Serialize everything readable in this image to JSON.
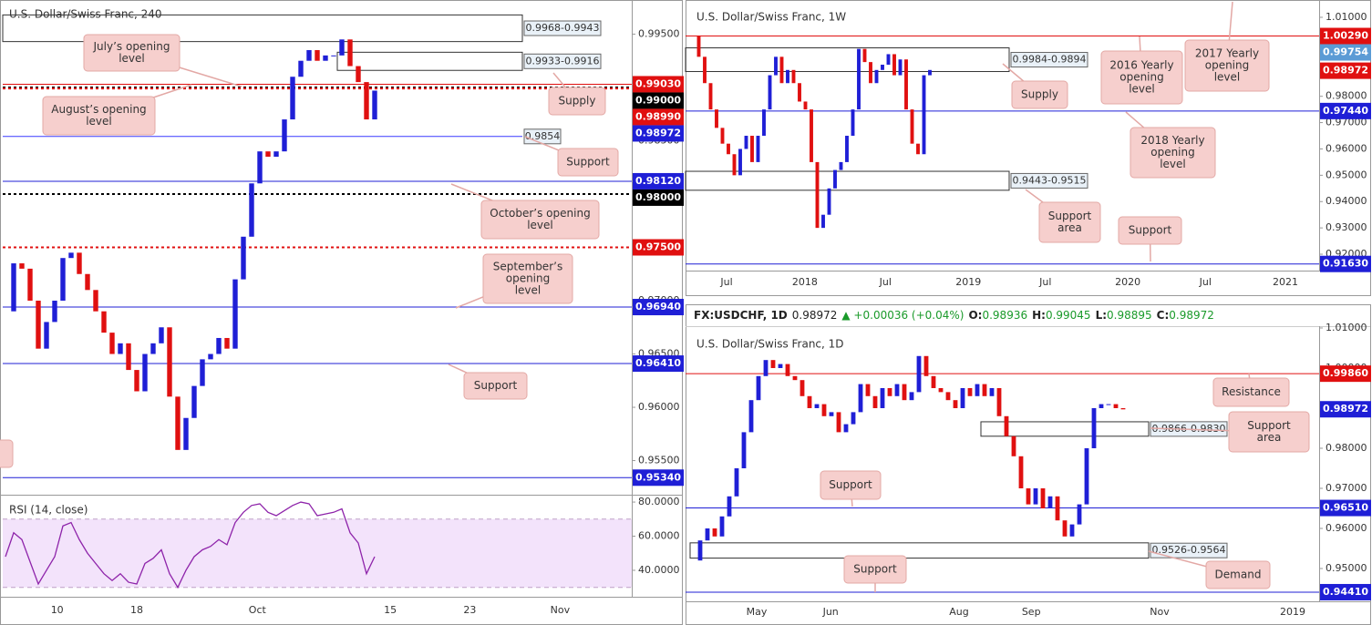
{
  "chart_data": [
    {
      "type": "candlestick",
      "title": "U.S. Dollar/Swiss Franc, 240",
      "closes": [
        0.969,
        0.9735,
        0.973,
        0.97,
        0.9655,
        0.968,
        0.97,
        0.974,
        0.9745,
        0.9725,
        0.971,
        0.969,
        0.967,
        0.965,
        0.966,
        0.9635,
        0.9615,
        0.965,
        0.966,
        0.9675,
        0.961,
        0.956,
        0.959,
        0.962,
        0.9645,
        0.965,
        0.9665,
        0.9655,
        0.972,
        0.976,
        0.981,
        0.984,
        0.9835,
        0.984,
        0.987,
        0.991,
        0.9925,
        0.9935,
        0.9925,
        0.993,
        0.993,
        0.9945,
        0.992,
        0.9905,
        0.987,
        0.9897
      ],
      "up_color": "#1f1fd6",
      "down_color": "#e01010",
      "xlim": [
        0,
        76
      ],
      "xticks": [
        {
          "value": 6.3,
          "label": "10"
        },
        {
          "value": 16,
          "label": "18"
        },
        {
          "value": 30.7,
          "label": "Oct"
        },
        {
          "value": 46.9,
          "label": "15"
        },
        {
          "value": 56.6,
          "label": "23"
        },
        {
          "value": 67.6,
          "label": "Nov"
        }
      ],
      "ylim": [
        0.9518,
        0.9982
      ],
      "yticks": [
        {
          "value": 0.955,
          "label": "0.95500"
        },
        {
          "value": 0.96,
          "label": "0.96000"
        },
        {
          "value": 0.965,
          "label": "0.96500"
        },
        {
          "value": 0.97,
          "label": "0.97000"
        },
        {
          "value": 0.975,
          "label": "0.97500"
        },
        {
          "value": 0.98,
          "label": "0.98000"
        },
        {
          "value": 0.985,
          "label": "0.98500"
        },
        {
          "value": 0.99,
          "label": "0.99000"
        },
        {
          "value": 0.995,
          "label": "0.99500"
        }
      ],
      "zones": [
        {
          "values": [
            0.9968,
            0.9943
          ],
          "label": "0.9968-0.9943"
        },
        {
          "values": [
            0.9933,
            0.9916
          ],
          "label": "0.9933-0.9916"
        }
      ],
      "lines": [
        {
          "value": 0.9854,
          "color": "#3a3aff"
        }
      ],
      "levels": [
        {
          "value": 0.9903,
          "label": "0.99030",
          "color": "#e01010",
          "style": "solid"
        },
        {
          "value": 0.99,
          "label": "0.99000",
          "color": "#000000",
          "style": "dashed"
        },
        {
          "value": 0.9899,
          "label": "0.98990",
          "color": "#e01010",
          "style": "dashed"
        },
        {
          "value": 0.98972,
          "label": "0.98972",
          "color": "#1f1fd6",
          "style": "none"
        },
        {
          "value": 0.9812,
          "label": "0.98120",
          "color": "#1f1fd6",
          "style": "solid"
        },
        {
          "value": 0.98,
          "label": "0.98000",
          "color": "#000000",
          "style": "dashed"
        },
        {
          "value": 0.975,
          "label": "0.97500",
          "color": "#e01010",
          "style": "dashed"
        },
        {
          "value": 0.9694,
          "label": "0.96940",
          "color": "#1f1fd6",
          "style": "solid"
        },
        {
          "value": 0.9641,
          "label": "0.96410",
          "color": "#1f1fd6",
          "style": "solid"
        },
        {
          "value": 0.9534,
          "label": "0.95340",
          "color": "#1f1fd6",
          "style": "solid"
        }
      ],
      "annotations": [
        {
          "lines": [
            "July’s opening",
            "level"
          ]
        },
        {
          "lines": [
            "August’s opening",
            "level"
          ]
        },
        {
          "lines": [
            "Supply"
          ]
        },
        {
          "lines": [
            "Support"
          ]
        },
        {
          "lines": [
            "October’s opening",
            "level"
          ]
        },
        {
          "lines": [
            "September’s",
            "opening",
            "level"
          ]
        },
        {
          "lines": [
            "Support"
          ]
        }
      ]
    },
    {
      "type": "line",
      "title": "RSI (14, close)",
      "color": "#8e24aa",
      "values": [
        48,
        62,
        58,
        45,
        32,
        40,
        48,
        66,
        68,
        58,
        50,
        44,
        38,
        34,
        38,
        33,
        32,
        44,
        47,
        52,
        38,
        30,
        40,
        48,
        52,
        54,
        58,
        55,
        68,
        74,
        78,
        79,
        74,
        72,
        75,
        78,
        80,
        79,
        72,
        73,
        74,
        76,
        62,
        56,
        38,
        48
      ],
      "band": [
        30,
        70
      ],
      "band_color": "#f3e3fb",
      "xlim": [
        0,
        76
      ],
      "ylim": [
        24.5,
        84.3
      ],
      "yticks": [
        {
          "value": 40,
          "label": "40.0000"
        },
        {
          "value": 60,
          "label": "60.0000"
        },
        {
          "value": 80,
          "label": "80.0000"
        }
      ]
    },
    {
      "type": "candlestick",
      "title": "U.S. Dollar/Swiss Franc, 1W",
      "closes": [
        1.003,
        0.995,
        0.985,
        0.975,
        0.968,
        0.962,
        0.958,
        0.95,
        0.96,
        0.965,
        0.955,
        0.965,
        0.975,
        0.988,
        0.995,
        0.985,
        0.99,
        0.985,
        0.978,
        0.975,
        0.955,
        0.93,
        0.935,
        0.945,
        0.952,
        0.955,
        0.965,
        0.975,
        0.998,
        0.993,
        0.985,
        0.99,
        0.992,
        0.996,
        0.988,
        0.994,
        0.975,
        0.962,
        0.958,
        0.988,
        0.99
      ],
      "up_color": "#1f1fd6",
      "down_color": "#e01010",
      "xlim": [
        0,
        105
      ],
      "xticks": [
        {
          "value": 5.7,
          "label": "Jul"
        },
        {
          "value": 18.9,
          "label": "2018"
        },
        {
          "value": 32.5,
          "label": "Jul"
        },
        {
          "value": 46.5,
          "label": "2019"
        },
        {
          "value": 59.5,
          "label": "Jul"
        },
        {
          "value": 73.4,
          "label": "2020"
        },
        {
          "value": 86.5,
          "label": "Jul"
        },
        {
          "value": 100,
          "label": "2021"
        }
      ],
      "ylim": [
        0.91378,
        1.01658
      ],
      "yticks": [
        {
          "value": 0.92,
          "label": "0.92000"
        },
        {
          "value": 0.93,
          "label": "0.93000"
        },
        {
          "value": 0.94,
          "label": "0.94000"
        },
        {
          "value": 0.95,
          "label": "0.95000"
        },
        {
          "value": 0.96,
          "label": "0.96000"
        },
        {
          "value": 0.97,
          "label": "0.97000"
        },
        {
          "value": 0.98,
          "label": "0.98000"
        },
        {
          "value": 0.99,
          "label": "0.99000"
        },
        {
          "value": 1,
          "label": "1.00000"
        },
        {
          "value": 1.01,
          "label": "1.01000"
        }
      ],
      "zones": [
        {
          "values": [
            0.9984,
            0.9894
          ],
          "label": "0.9984-0.9894"
        },
        {
          "values": [
            0.9443,
            0.9515
          ],
          "label": "0.9443-0.9515"
        }
      ],
      "lines": [],
      "levels": [
        {
          "value": 1.0029,
          "label": "1.00290",
          "color": "#e01010",
          "style": "solid"
        },
        {
          "value": 0.99754,
          "label": "0.99754",
          "color": "#5b9bd5",
          "style": "none"
        },
        {
          "value": 0.98972,
          "label": "0.98972",
          "color": "#e01010",
          "style": "none"
        },
        {
          "value": 0.9744,
          "label": "0.97440",
          "color": "#1f1fd6",
          "style": "solid"
        },
        {
          "value": 0.9163,
          "label": "0.91630",
          "color": "#1f1fd6",
          "style": "solid"
        }
      ],
      "annotations": [
        {
          "lines": [
            "2016 Yearly",
            "opening",
            "level"
          ]
        },
        {
          "lines": [
            "2017 Yearly",
            "opening",
            "level"
          ]
        },
        {
          "lines": [
            "Supply"
          ]
        },
        {
          "lines": [
            "2018 Yearly",
            "opening",
            "level"
          ]
        },
        {
          "lines": [
            "Support",
            "area"
          ]
        },
        {
          "lines": [
            "Support"
          ]
        }
      ]
    },
    {
      "type": "candlestick",
      "title": "U.S. Dollar/Swiss Franc, 1D",
      "quote": {
        "symbol": "FX:USDCHF, 1D",
        "last": "0.98972",
        "change": "▲ +0.00036 (+0.04%)",
        "ohlc": [
          {
            "label": "O:",
            "value": "0.98936"
          },
          {
            "label": "H:",
            "value": "0.99045"
          },
          {
            "label": "L:",
            "value": "0.98895"
          },
          {
            "label": "C:",
            "value": "0.98972"
          }
        ]
      },
      "closes": [
        0.952,
        0.957,
        0.96,
        0.958,
        0.963,
        0.968,
        0.975,
        0.984,
        0.992,
        0.998,
        1.002,
        1,
        1.001,
        0.998,
        0.997,
        0.993,
        0.99,
        0.991,
        0.988,
        0.989,
        0.984,
        0.986,
        0.989,
        0.996,
        0.993,
        0.99,
        0.995,
        0.993,
        0.996,
        0.992,
        0.994,
        1.003,
        0.998,
        0.995,
        0.994,
        0.992,
        0.99,
        0.995,
        0.993,
        0.996,
        0.993,
        0.995,
        0.988,
        0.983,
        0.978,
        0.97,
        0.966,
        0.97,
        0.965,
        0.968,
        0.962,
        0.958,
        0.961,
        0.966,
        0.98,
        0.99,
        0.991,
        0.991,
        0.99,
        0.9897
      ],
      "up_color": "#1f1fd6",
      "down_color": "#e01010",
      "xlim": [
        0,
        85.5
      ],
      "xticks": [
        {
          "value": 8.75,
          "label": "May"
        },
        {
          "value": 18.9,
          "label": "Jun"
        },
        {
          "value": 36.5,
          "label": "Aug"
        },
        {
          "value": 46.4,
          "label": "Sep"
        },
        {
          "value": 64,
          "label": "Nov"
        },
        {
          "value": 82.25,
          "label": "2019"
        }
      ],
      "ylim": [
        0.94182,
        1.01045
      ],
      "yticks": [
        {
          "value": 0.95,
          "label": "0.95000"
        },
        {
          "value": 0.96,
          "label": "0.96000"
        },
        {
          "value": 0.97,
          "label": "0.97000"
        },
        {
          "value": 0.98,
          "label": "0.98000"
        },
        {
          "value": 0.99,
          "label": "0.99000"
        },
        {
          "value": 1,
          "label": "1.00000"
        },
        {
          "value": 1.01,
          "label": "1.01000"
        }
      ],
      "zones": [
        {
          "values": [
            0.9866,
            0.983
          ],
          "label": "0.9866-0.9830"
        },
        {
          "values": [
            0.9526,
            0.9564
          ],
          "label": "0.9526-0.9564"
        }
      ],
      "lines": [],
      "levels": [
        {
          "value": 0.9986,
          "label": "0.99860",
          "color": "#e01010",
          "style": "solid"
        },
        {
          "value": 0.98972,
          "label": "0.98972",
          "color": "#1f1fd6",
          "style": "none"
        },
        {
          "value": 0.9651,
          "label": "0.96510",
          "color": "#1f1fd6",
          "style": "solid"
        },
        {
          "value": 0.9441,
          "label": "0.94410",
          "color": "#1f1fd6",
          "style": "solid"
        }
      ],
      "annotations": [
        {
          "lines": [
            "Resistance"
          ]
        },
        {
          "lines": [
            "Support",
            "area"
          ]
        },
        {
          "lines": [
            "Support"
          ]
        },
        {
          "lines": [
            "Demand"
          ]
        },
        {
          "lines": [
            "Support"
          ]
        }
      ]
    }
  ]
}
